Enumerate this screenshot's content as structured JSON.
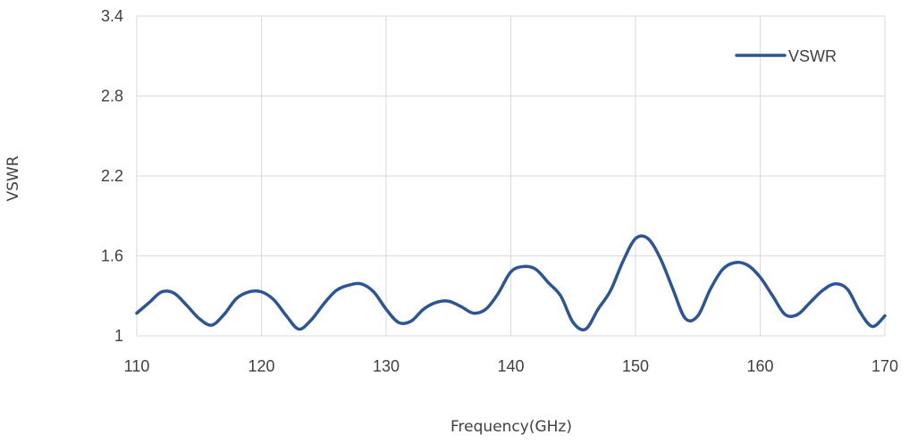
{
  "chart_data": {
    "type": "line",
    "xlabel": "Frequency(GHz)",
    "ylabel": "VSWR",
    "xlim": [
      110,
      170
    ],
    "ylim": [
      1,
      3.4
    ],
    "x_ticks": [
      "110",
      "120",
      "130",
      "140",
      "150",
      "160",
      "170"
    ],
    "y_ticks": [
      "1",
      "1.6",
      "2.2",
      "2.8",
      "3.4"
    ],
    "grid": true,
    "legend_position": "top-right",
    "colors": {
      "series": "#2b5597",
      "grid": "#d9d9d9",
      "text": "#404040"
    },
    "series": [
      {
        "name": "VSWR",
        "x": [
          110,
          111,
          112,
          113,
          114,
          115,
          116,
          117,
          118,
          119,
          120,
          121,
          122,
          123,
          124,
          125,
          126,
          127,
          128,
          129,
          130,
          131,
          132,
          133,
          134,
          135,
          136,
          137,
          138,
          139,
          140,
          141,
          142,
          143,
          144,
          145,
          146,
          147,
          148,
          149,
          150,
          151,
          152,
          153,
          154,
          155,
          156,
          157,
          158,
          159,
          160,
          161,
          162,
          163,
          164,
          165,
          166,
          167,
          168,
          169,
          170
        ],
        "values": [
          1.17,
          1.25,
          1.33,
          1.32,
          1.23,
          1.13,
          1.08,
          1.16,
          1.28,
          1.33,
          1.33,
          1.27,
          1.15,
          1.05,
          1.12,
          1.24,
          1.34,
          1.38,
          1.39,
          1.33,
          1.2,
          1.1,
          1.11,
          1.2,
          1.25,
          1.26,
          1.22,
          1.17,
          1.2,
          1.32,
          1.48,
          1.52,
          1.5,
          1.4,
          1.3,
          1.1,
          1.05,
          1.2,
          1.34,
          1.56,
          1.73,
          1.73,
          1.58,
          1.35,
          1.13,
          1.15,
          1.35,
          1.5,
          1.55,
          1.53,
          1.44,
          1.3,
          1.16,
          1.16,
          1.25,
          1.34,
          1.39,
          1.35,
          1.18,
          1.07,
          1.15
        ]
      }
    ]
  }
}
